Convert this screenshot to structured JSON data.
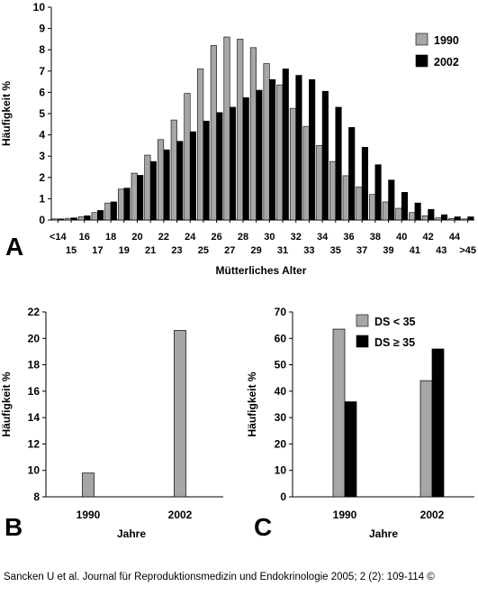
{
  "colors": {
    "series_1990": "#a6a6a6",
    "series_2002": "#000000",
    "axis": "#000000",
    "background": "#ffffff"
  },
  "citation": "Sancken U et al. Journal für Reproduktionsmedizin und Endokrinologie 2005; 2 (2): 109-114 ©",
  "chart_data": [
    {
      "panel_label": "A",
      "type": "bar",
      "ylabel": "Häufigkeit %",
      "xlabel": "Mütterliches Alter",
      "ylim": [
        0,
        10
      ],
      "yticks": [
        0,
        1,
        2,
        3,
        4,
        5,
        6,
        7,
        8,
        9,
        10
      ],
      "grid": false,
      "legend_position": "top-right",
      "categories": [
        "<14",
        "15",
        "16",
        "17",
        "18",
        "19",
        "20",
        "21",
        "22",
        "23",
        "24",
        "25",
        "26",
        "27",
        "28",
        "29",
        "30",
        "31",
        "32",
        "33",
        "34",
        "35",
        "36",
        "37",
        "38",
        "39",
        "40",
        "41",
        "42",
        "43",
        "44",
        ">45"
      ],
      "series": [
        {
          "name": "1990",
          "color": "#a6a6a6",
          "values": [
            0.05,
            0.08,
            0.15,
            0.35,
            0.8,
            1.45,
            2.2,
            3.05,
            3.78,
            4.7,
            5.95,
            7.1,
            8.2,
            8.6,
            8.5,
            8.1,
            7.35,
            6.35,
            5.25,
            4.4,
            3.5,
            2.75,
            2.08,
            1.55,
            1.2,
            0.85,
            0.55,
            0.35,
            0.2,
            0.1,
            0.07,
            0.05
          ]
        },
        {
          "name": "2002",
          "color": "#000000",
          "values": [
            0.05,
            0.1,
            0.2,
            0.45,
            0.85,
            1.5,
            2.1,
            2.75,
            3.3,
            3.7,
            4.15,
            4.65,
            5.05,
            5.3,
            5.75,
            6.1,
            6.6,
            7.1,
            6.8,
            6.6,
            6.05,
            5.3,
            4.35,
            3.42,
            2.6,
            1.88,
            1.3,
            0.8,
            0.5,
            0.25,
            0.15,
            0.15
          ]
        }
      ]
    },
    {
      "panel_label": "B",
      "type": "bar",
      "ylabel": "Häufigkeit %",
      "xlabel": "Jahre",
      "ylim": [
        8,
        22
      ],
      "yticks": [
        8,
        10,
        12,
        14,
        16,
        18,
        20,
        22
      ],
      "grid": false,
      "categories": [
        "1990",
        "2002"
      ],
      "values": [
        9.8,
        20.6
      ],
      "color": "#a6a6a6"
    },
    {
      "panel_label": "C",
      "type": "bar",
      "ylabel": "Häufigkeit %",
      "xlabel": "Jahre",
      "ylim": [
        0,
        70
      ],
      "yticks": [
        0,
        10,
        20,
        30,
        40,
        50,
        60,
        70
      ],
      "grid": false,
      "legend_position": "top-left",
      "categories": [
        "1990",
        "2002"
      ],
      "series": [
        {
          "name": "DS < 35",
          "color": "#a6a6a6",
          "values": [
            63.5,
            44
          ]
        },
        {
          "name": "DS ≥ 35",
          "color": "#000000",
          "values": [
            36,
            56
          ]
        }
      ]
    }
  ]
}
